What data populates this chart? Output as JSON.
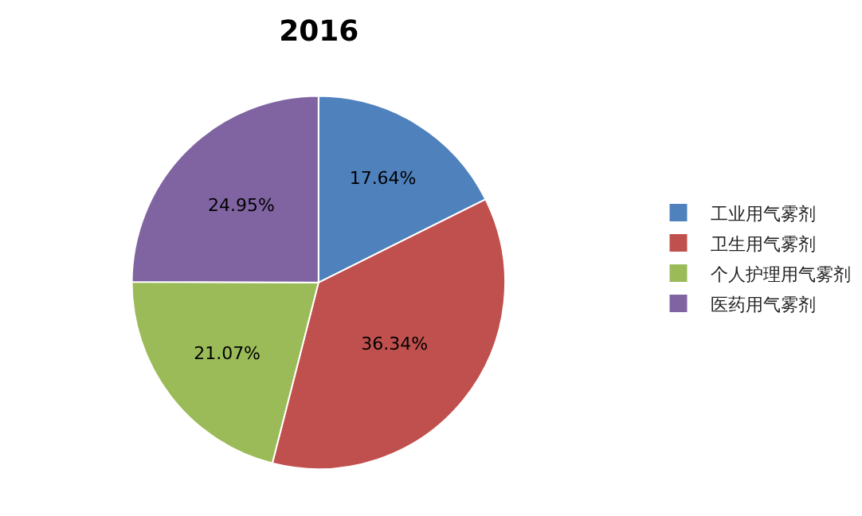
{
  "chart_data": {
    "type": "pie",
    "title": "2016",
    "categories": [
      "工业用气雾剂",
      "卫生用气雾剂",
      "个人护理用气雾剂",
      "医药用气雾剂"
    ],
    "values": [
      17.64,
      36.34,
      21.07,
      24.95
    ],
    "value_labels": [
      "17.64%",
      "36.34%",
      "21.07%",
      "24.95%"
    ],
    "colors": [
      "#4f81bd",
      "#c0504d",
      "#9bbb59",
      "#8064a2"
    ],
    "legend": "right"
  }
}
